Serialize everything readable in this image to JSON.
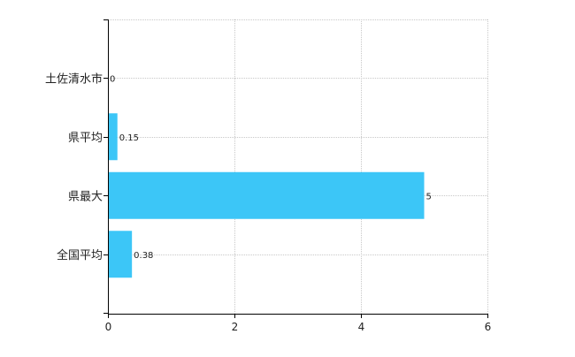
{
  "chart_data": {
    "type": "bar",
    "orientation": "horizontal",
    "categories": [
      "土佐清水市",
      "県平均",
      "県最大",
      "全国平均"
    ],
    "values": [
      0,
      0.15,
      5,
      0.38
    ],
    "value_labels": [
      "0",
      "0.15",
      "5",
      "0.38"
    ],
    "xlim": [
      0,
      6
    ],
    "xticks": [
      0,
      2,
      4,
      6
    ],
    "xtick_labels": [
      "0",
      "2",
      "4",
      "6"
    ],
    "grid": true,
    "legend": "none",
    "bar_color": "#3CC6F7",
    "title": "",
    "xlabel": "",
    "ylabel": ""
  }
}
